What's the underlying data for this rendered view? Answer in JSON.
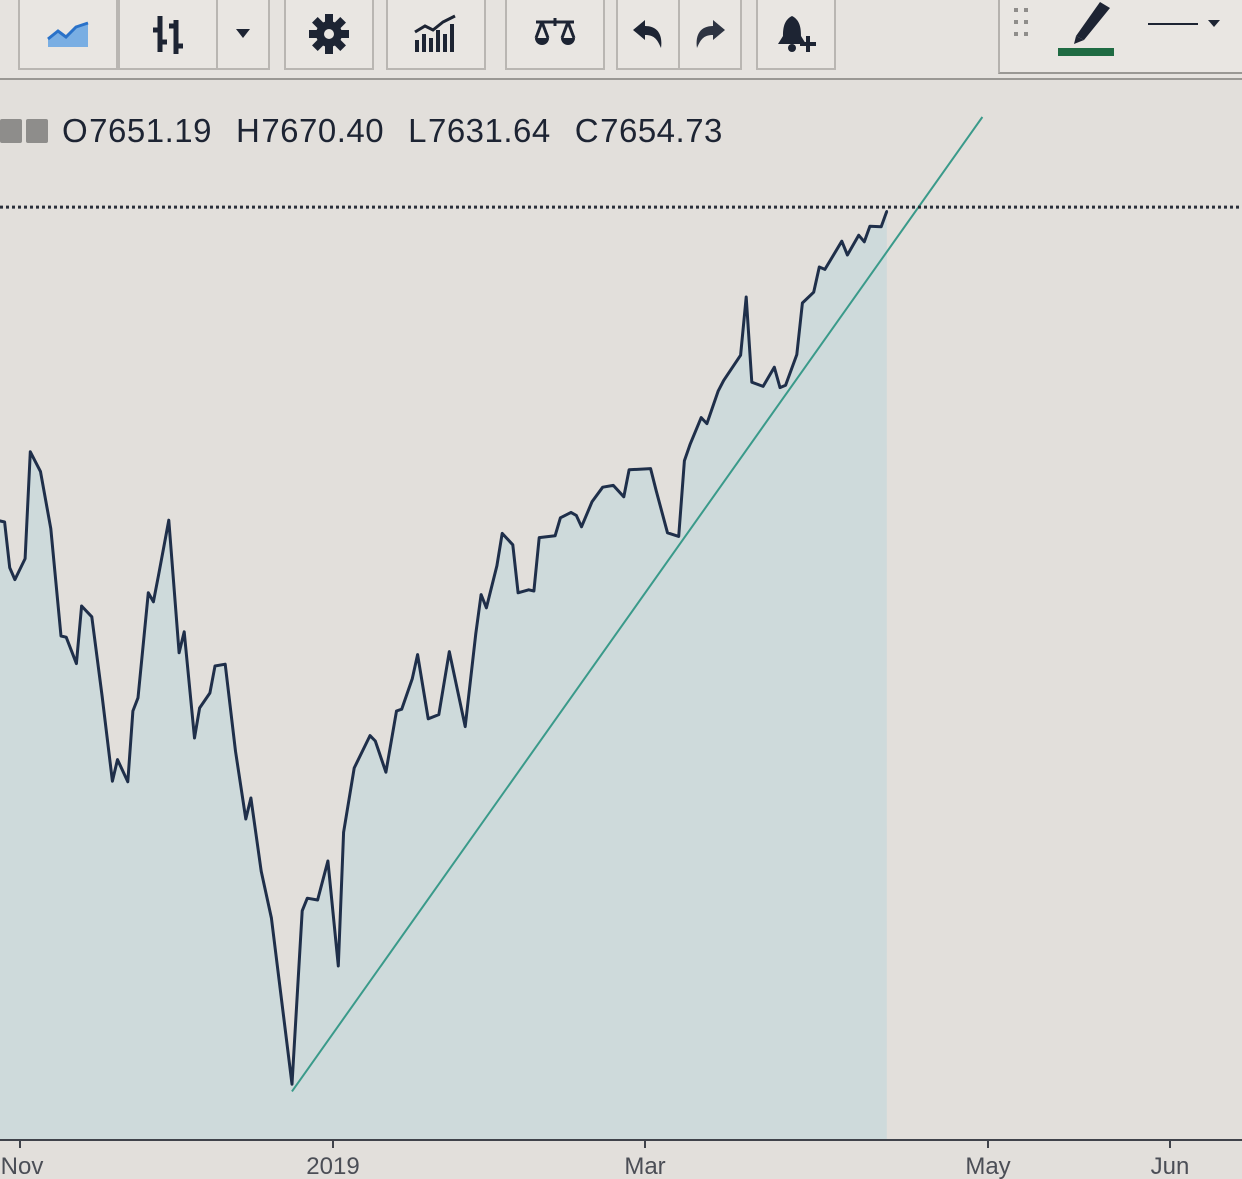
{
  "toolbar": {
    "buttons": [
      {
        "name": "chart-type-area",
        "icon": "area-chart-icon"
      },
      {
        "name": "chart-type-bars",
        "icon": "bars-icon"
      },
      {
        "name": "chart-type-dropdown",
        "icon": "caret-down-icon"
      },
      {
        "name": "settings",
        "icon": "gear-icon"
      },
      {
        "name": "indicators",
        "icon": "indicators-icon"
      },
      {
        "name": "compare",
        "icon": "scale-icon"
      },
      {
        "name": "undo",
        "icon": "undo-icon"
      },
      {
        "name": "redo",
        "icon": "redo-icon"
      },
      {
        "name": "add-alert",
        "icon": "bell-plus-icon"
      }
    ],
    "drawing_panel": {
      "grip": "grip-icon",
      "pencil": "pencil-icon",
      "pencil_color": "#1f6b43",
      "line_style": "line-style-icon"
    }
  },
  "ohlc": {
    "open_label": "O",
    "open": "7651.19",
    "high_label": "H",
    "high": "7670.40",
    "low_label": "L",
    "low": "7631.64",
    "close_label": "C",
    "close": "7654.73"
  },
  "chart_data": {
    "type": "area",
    "title": "",
    "xlabel": "",
    "ylabel": "",
    "ylim": [
      6100,
      8000
    ],
    "grid": false,
    "x_ticks": [
      {
        "label": "Nov",
        "date": "2018-11-01"
      },
      {
        "label": "2019",
        "date": "2019-01-01"
      },
      {
        "label": "Mar",
        "date": "2019-03-01"
      },
      {
        "label": "May",
        "date": "2019-05-01"
      },
      {
        "label": "Jun",
        "date": "2019-06-01"
      }
    ],
    "series": [
      {
        "color": "#1f2f4a",
        "fill": "#a9d2dc",
        "x": [
          "2018-10-28",
          "2018-10-29",
          "2018-10-30",
          "2018-10-31",
          "2018-11-02",
          "2018-11-03",
          "2018-11-05",
          "2018-11-07",
          "2018-11-09",
          "2018-11-10",
          "2018-11-12",
          "2018-11-13",
          "2018-11-15",
          "2018-11-17",
          "2018-11-19",
          "2018-11-20",
          "2018-11-22",
          "2018-11-23",
          "2018-11-24",
          "2018-11-26",
          "2018-11-27",
          "2018-11-28",
          "2018-11-30",
          "2018-12-02",
          "2018-12-03",
          "2018-12-05",
          "2018-12-06",
          "2018-12-08",
          "2018-12-09",
          "2018-12-11",
          "2018-12-13",
          "2018-12-15",
          "2018-12-16",
          "2018-12-18",
          "2018-12-20",
          "2018-12-24",
          "2018-12-26",
          "2018-12-27",
          "2018-12-29",
          "2018-12-31",
          "2019-01-02",
          "2019-01-03",
          "2019-01-05",
          "2019-01-08",
          "2019-01-09",
          "2019-01-11",
          "2019-01-13",
          "2019-01-14",
          "2019-01-16",
          "2019-01-17",
          "2019-01-19",
          "2019-01-21",
          "2019-01-23",
          "2019-01-26",
          "2019-01-28",
          "2019-01-29",
          "2019-01-30",
          "2019-02-01",
          "2019-02-02",
          "2019-02-04",
          "2019-02-05",
          "2019-02-07",
          "2019-02-08",
          "2019-02-09",
          "2019-02-12",
          "2019-02-13",
          "2019-02-15",
          "2019-02-16",
          "2019-02-17",
          "2019-02-19",
          "2019-02-21",
          "2019-02-23",
          "2019-02-25",
          "2019-02-26",
          "2019-03-02",
          "2019-03-03",
          "2019-03-05",
          "2019-03-07",
          "2019-03-08",
          "2019-03-09",
          "2019-03-11",
          "2019-03-12",
          "2019-03-14",
          "2019-03-15",
          "2019-03-18",
          "2019-03-19",
          "2019-03-20",
          "2019-03-22",
          "2019-03-24",
          "2019-03-25",
          "2019-03-26",
          "2019-03-28",
          "2019-03-29",
          "2019-03-31",
          "2019-04-01",
          "2019-04-02",
          "2019-04-05",
          "2019-04-06",
          "2019-04-08",
          "2019-04-09",
          "2019-04-10",
          "2019-04-12",
          "2019-04-13"
        ],
        "y": [
          7132,
          7130,
          7054,
          7034,
          7069,
          7247,
          7214,
          7119,
          6940,
          6938,
          6894,
          6990,
          6972,
          6840,
          6698,
          6734,
          6697,
          6815,
          6837,
          7012,
          6997,
          7041,
          7133,
          6912,
          6947,
          6770,
          6820,
          6845,
          6890,
          6893,
          6748,
          6635,
          6670,
          6548,
          6470,
          6193,
          6482,
          6503,
          6500,
          6565,
          6390,
          6613,
          6720,
          6774,
          6765,
          6713,
          6815,
          6818,
          6869,
          6909,
          6802,
          6809,
          6914,
          6789,
          6944,
          7009,
          6987,
          7057,
          7111,
          7092,
          7012,
          7017,
          7015,
          7104,
          7107,
          7137,
          7146,
          7141,
          7122,
          7164,
          7188,
          7191,
          7172,
          7217,
          7219,
          7182,
          7112,
          7106,
          7232,
          7259,
          7304,
          7294,
          7348,
          7366,
          7408,
          7505,
          7363,
          7356,
          7388,
          7354,
          7358,
          7409,
          7495,
          7513,
          7555,
          7551,
          7598,
          7575,
          7608,
          7597,
          7623,
          7622,
          7648
        ]
      }
    ],
    "trendline": {
      "color": "#3a9a8a",
      "start": {
        "date": "2018-12-24",
        "value": 6181
      },
      "end": {
        "date": "2019-04-30",
        "value": 7805
      }
    },
    "price_line": {
      "value": 7654.73,
      "color": "#2a2f3a",
      "style": "dotted"
    }
  }
}
